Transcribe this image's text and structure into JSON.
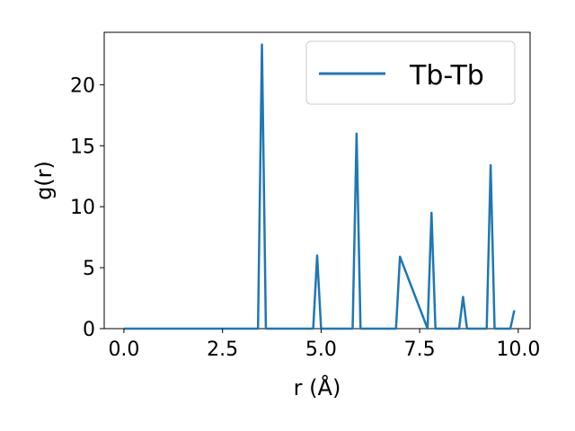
{
  "chart_data": {
    "type": "line",
    "title": "",
    "xlabel": "r (Å)",
    "ylabel": "g(r)",
    "xlim": [
      -0.5,
      10.3
    ],
    "ylim": [
      0,
      24.3
    ],
    "xticks": [
      0.0,
      2.5,
      5.0,
      7.5,
      10.0
    ],
    "xtick_labels": [
      "0.0",
      "2.5",
      "5.0",
      "7.5",
      "10.0"
    ],
    "yticks": [
      0,
      5,
      10,
      15,
      20
    ],
    "ytick_labels": [
      "0",
      "5",
      "10",
      "15",
      "20"
    ],
    "grid": false,
    "legend": {
      "position": "top-right"
    },
    "series": [
      {
        "name": "Tb-Tb",
        "color": "#1f77b4",
        "x": [
          0.0,
          3.4,
          3.5,
          3.6,
          4.8,
          4.9,
          5.0,
          5.8,
          5.9,
          6.0,
          6.9,
          7.0,
          7.7,
          7.8,
          7.9,
          8.5,
          8.6,
          8.7,
          9.2,
          9.3,
          9.4,
          9.8,
          9.9
        ],
        "y": [
          0,
          0,
          23.3,
          0,
          0,
          6.0,
          0,
          0,
          16.0,
          0,
          0,
          5.9,
          0,
          9.5,
          0,
          0,
          2.6,
          0,
          0,
          13.4,
          0,
          0,
          1.5
        ]
      }
    ]
  }
}
